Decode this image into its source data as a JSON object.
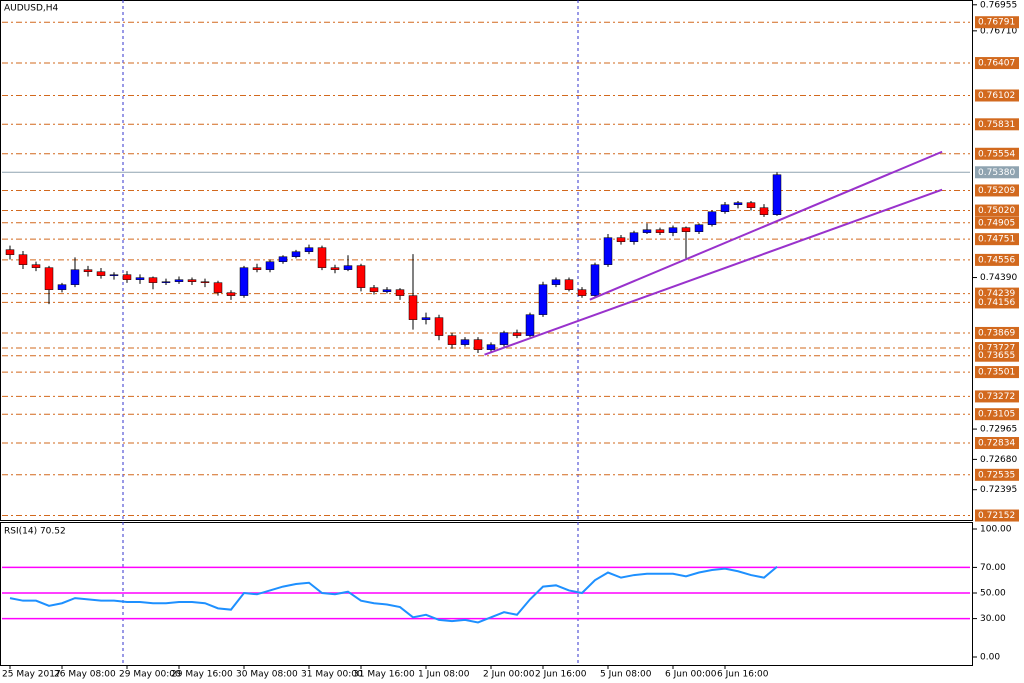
{
  "chart_data": [
    {
      "type": "candlestick",
      "title": "AUDUSD,H4",
      "categories": [
        "25 May 2017",
        null,
        null,
        null,
        "26 May 08:00",
        null,
        null,
        null,
        null,
        "29 May 00:00",
        null,
        null,
        null,
        "29 May 16:00",
        null,
        null,
        null,
        null,
        "30 May 08:00",
        null,
        null,
        null,
        null,
        "31 May 00:00",
        null,
        null,
        null,
        "31 May 16:00",
        null,
        null,
        null,
        null,
        "1 Jun 08:00",
        null,
        null,
        null,
        null,
        "2 Jun 00:00",
        null,
        null,
        null,
        "2 Jun 16:00",
        null,
        null,
        null,
        null,
        "5 Jun 08:00",
        null,
        null,
        null,
        null,
        "6 Jun 00:00",
        null,
        null,
        null,
        "6 Jun 16:00",
        null,
        null,
        null,
        null
      ],
      "open": [
        0.74652,
        0.74605,
        0.74511,
        0.74483,
        0.74276,
        0.74323,
        0.74464,
        0.74445,
        0.74408,
        0.74417,
        0.7437,
        0.74389,
        0.74342,
        0.74351,
        0.7437,
        0.74351,
        0.74342,
        0.74248,
        0.7422,
        0.74483,
        0.74464,
        0.74539,
        0.74586,
        0.74633,
        0.74671,
        0.74483,
        0.74464,
        0.74502,
        0.74295,
        0.74257,
        0.74276,
        0.7422,
        0.73994,
        0.74013,
        0.73844,
        0.73759,
        0.73806,
        0.73712,
        0.73759,
        0.73872,
        0.73844,
        0.74041,
        0.74323,
        0.7437,
        0.74276,
        0.7422,
        0.74511,
        0.74765,
        0.74727,
        0.74812,
        0.7484,
        0.74812,
        0.74859,
        0.74821,
        0.74887,
        0.75009,
        0.75075,
        0.75094,
        0.75047,
        0.74981
      ],
      "high": [
        0.7469,
        0.7464,
        0.7454,
        0.745,
        0.7434,
        0.7458,
        0.745,
        0.7448,
        0.7444,
        0.7445,
        0.7442,
        0.744,
        0.7438,
        0.744,
        0.7439,
        0.7438,
        0.7436,
        0.7427,
        0.745,
        0.7452,
        0.7456,
        0.746,
        0.7465,
        0.747,
        0.7469,
        0.7451,
        0.746,
        0.7452,
        0.7432,
        0.743,
        0.7429,
        0.7461,
        0.7406,
        0.7404,
        0.7387,
        0.7383,
        0.7383,
        0.7378,
        0.7389,
        0.739,
        0.7406,
        0.7435,
        0.7439,
        0.7439,
        0.743,
        0.7453,
        0.748,
        0.7479,
        0.7483,
        0.749,
        0.7486,
        0.7488,
        0.7487,
        0.749,
        0.7502,
        0.751,
        0.7511,
        0.7511,
        0.7508,
        0.7538
      ],
      "low": [
        0.7456,
        0.7447,
        0.7445,
        0.7414,
        0.7425,
        0.743,
        0.744,
        0.7438,
        0.7437,
        0.7434,
        0.7433,
        0.7428,
        0.7432,
        0.7433,
        0.7432,
        0.743,
        0.7422,
        0.7418,
        0.742,
        0.7444,
        0.7444,
        0.7452,
        0.7457,
        0.7461,
        0.7446,
        0.7443,
        0.7445,
        0.7426,
        0.7423,
        0.7424,
        0.7418,
        0.739,
        0.7395,
        0.738,
        0.7372,
        0.7374,
        0.7368,
        0.7369,
        0.7374,
        0.7382,
        0.7383,
        0.7402,
        0.743,
        0.7426,
        0.742,
        0.742,
        0.7449,
        0.747,
        0.747,
        0.748,
        0.7479,
        0.7478,
        0.7456,
        0.748,
        0.7487,
        0.7499,
        0.7504,
        0.7502,
        0.7496,
        0.7497
      ],
      "close": [
        0.74605,
        0.74511,
        0.74483,
        0.74276,
        0.74323,
        0.74464,
        0.74445,
        0.74408,
        0.74417,
        0.7437,
        0.74389,
        0.74342,
        0.74351,
        0.7437,
        0.74351,
        0.74342,
        0.74248,
        0.7422,
        0.74483,
        0.74464,
        0.74539,
        0.74586,
        0.74633,
        0.74671,
        0.74483,
        0.74464,
        0.74502,
        0.74295,
        0.74257,
        0.74276,
        0.7422,
        0.73994,
        0.74013,
        0.73844,
        0.73759,
        0.73806,
        0.73712,
        0.73759,
        0.73872,
        0.73844,
        0.74041,
        0.74323,
        0.7437,
        0.74276,
        0.7422,
        0.74511,
        0.74765,
        0.74727,
        0.74812,
        0.7484,
        0.74812,
        0.74859,
        0.74821,
        0.74887,
        0.75009,
        0.75075,
        0.75094,
        0.75047,
        0.74981,
        0.75357
      ],
      "up_color": "#0000ff",
      "down_color": "#ff0000",
      "ylim": [
        0.7211,
        0.77
      ],
      "yticks": [
        0.76955,
        {
          "value": 0.7671,
          "label": "0.76710"
        },
        {
          "value": 0.7439,
          "label": "0.74390"
        },
        0.72965,
        {
          "value": 0.7268,
          "label": "0.72680"
        },
        0.72395
      ],
      "levels": [
        0.76791,
        0.76407,
        0.76102,
        0.75831,
        0.75554,
        0.75209,
        {
          "value": 0.7502,
          "label": "0.75020"
        },
        0.74905,
        0.74751,
        0.74556,
        0.74239,
        0.74156,
        0.73869,
        0.73727,
        0.73655,
        0.73501,
        0.73272,
        0.73105,
        0.72834,
        0.72535,
        0.72152
      ],
      "level_color": "#d2691e",
      "current_price": {
        "value": 0.7538,
        "label": "0.75380"
      },
      "trendlines": [
        {
          "x": [
            44.6,
            71.7
          ],
          "y": [
            0.74182,
            0.75573
          ]
        },
        {
          "x": [
            36.5,
            71.7
          ],
          "y": [
            0.73665,
            0.75216
          ]
        }
      ],
      "trendline_color": "#9932cc"
    },
    {
      "type": "line",
      "title": "RSI(14) 70.52",
      "values": [
        46,
        44,
        44,
        40,
        42,
        46,
        45,
        44,
        44,
        43,
        43,
        42,
        42,
        43,
        43,
        42,
        38,
        37,
        50,
        49,
        52,
        55,
        57,
        58,
        50,
        49,
        51,
        44,
        42,
        41,
        39,
        31,
        33,
        29,
        28,
        29,
        27,
        31,
        35,
        33,
        45,
        55,
        56,
        52,
        50,
        60,
        66,
        62,
        64,
        65,
        65,
        65,
        63,
        66,
        68,
        69,
        67,
        64,
        62,
        70.52
      ],
      "color": "#1e90ff",
      "ylim": [
        0,
        100
      ],
      "yticks": [
        {
          "value": 100,
          "label": "100.00"
        },
        {
          "value": 70,
          "label": "70.00"
        },
        {
          "value": 50,
          "label": "50.00"
        },
        {
          "value": 30,
          "label": "30.00"
        },
        {
          "value": 0,
          "label": "0.00"
        }
      ],
      "levels": [
        70,
        50,
        30
      ],
      "level_color": "#ff00ff"
    }
  ]
}
